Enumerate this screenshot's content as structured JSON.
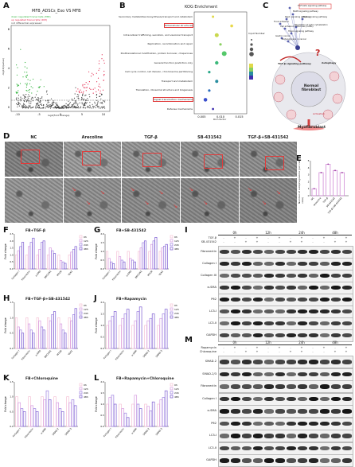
{
  "panel_labels": {
    "A": "A",
    "B": "B",
    "C": "C",
    "D": "D",
    "E": "E",
    "F": "F",
    "G": "G",
    "H": "H",
    "I": "I",
    "J": "J",
    "K": "K",
    "L": "L",
    "M": "M"
  },
  "panelA": {
    "title": "MFB_ADSCs_Exo VS MFB",
    "legend": [
      "down regulated transcripts (358)",
      "up regulated transcripts (263)",
      "not differential expressed"
    ],
    "xlabel": "log2(Fold Change)",
    "ylabel": "-log10(qvalue)",
    "xticks": [
      "-10",
      "-5",
      "0",
      "5",
      "10"
    ],
    "yticks": [
      "0",
      "2",
      "4",
      "6",
      "8"
    ],
    "colors": {
      "down": "#2fb23a",
      "up": "#e2244a",
      "ns": "#444444"
    }
  },
  "panelB": {
    "title": "KOG Enrichment",
    "xlabel": "Rich factor",
    "xticks": [
      "0.005",
      "0.010",
      "0.015"
    ],
    "legend_title": "Input Number",
    "categories": [
      "Secondary metabolites biosynthesis,transport and catabolism",
      "Extracellular structures",
      "Intracellular trafficking, secretion, and vesicular transport",
      "Replication, recombination and repair",
      "Posttranslational modification, protein turnover, chaperones",
      "General function prediction only",
      "Cell cycle control, cell division, chromosome partitioning",
      "Transport and metabolism",
      "Translation, ribosomal structure and biogenesis",
      "Signal transduction mechanisms",
      "Defense mechanisms"
    ],
    "highlighted": [
      "Extracellular structures",
      "Signal transduction mechanisms"
    ]
  },
  "panelC": {
    "top_nodes": [
      "TGF-beta signaling pathway",
      "MAPK signaling pathway",
      "Rap1 signaling pathway",
      "Focal adhesion",
      "Cell adhesion molecules (CAMs)",
      "Hippo signaling pathway",
      "Gastric cancer",
      "Proteoglycans in cancer",
      "Regulation of actin cytoskeleton",
      "Rap1 signaling pathway"
    ],
    "hub_label": "TGF-β signaling pathway",
    "autophagy": "Autophagy",
    "center": "Normal fibroblast",
    "activation": "Activation",
    "myofibroblast": "Myofibroblast",
    "autophagosome": "Autophagosome",
    "lysosome": "Lysosome",
    "autolysosome": "Autolysosome",
    "phagophore": "Phagophore"
  },
  "panelD": {
    "columns": [
      "NC",
      "Arecoline",
      "TGF-β",
      "SB-431542",
      "TGF-β+SB-431542"
    ]
  },
  "panelE": {
    "chart_data": {
      "type": "bar",
      "ylabel": "Number of autophagosome (per cell view)",
      "categories": [
        "NC",
        "Arecoline",
        "TGF-β",
        "SB-431542",
        "TGF-β+SB-431542"
      ],
      "values": [
        1.0,
        3.3,
        4.5,
        3.6,
        3.3
      ],
      "ylim": [
        0,
        5
      ],
      "yticks": [
        "0",
        "1",
        "2",
        "3",
        "4",
        "5"
      ],
      "colors": [
        "#d18bd6",
        "#d18bd6",
        "#d18bd6",
        "#d18bd6",
        "#d18bd6"
      ]
    }
  },
  "fold_charts": {
    "legend": [
      "0h",
      "12h",
      "24h",
      "48h"
    ],
    "colors": [
      "#f5c2d6",
      "#d69ae0",
      "#9b7fe0",
      "#7a5ad1"
    ],
    "F": {
      "title": "FB+TGF-β",
      "ylabel": "Fold change",
      "ylim": [
        0,
        2.5
      ],
      "yticks": [
        "0.0",
        "0.5",
        "1.0",
        "1.5",
        "2.0",
        "2.5"
      ],
      "categories": [
        "Collagen I",
        "Fibronectin",
        "α-SMA",
        "BECLIN1",
        "MTOR",
        "ULK1"
      ],
      "series": [
        [
          1,
          1,
          1,
          1,
          1,
          1
        ],
        [
          1.3,
          1.6,
          1.4,
          1.5,
          0.6,
          1.2
        ],
        [
          1.6,
          1.9,
          1.9,
          1.3,
          0.5,
          1.4
        ],
        [
          1.9,
          2.2,
          2.0,
          1.1,
          0.4,
          1.6
        ]
      ]
    },
    "G": {
      "title": "FB+SB-431542",
      "ylabel": "Fold change",
      "ylim": [
        0,
        2.0
      ],
      "yticks": [
        "0.0",
        "0.5",
        "1.0",
        "1.5",
        "2.0"
      ],
      "categories": [
        "Collagen I",
        "Fibronectin",
        "α-SMA",
        "BECLIN1",
        "MTOR",
        "ULK1"
      ],
      "series": [
        [
          1,
          1,
          1,
          1,
          1,
          1
        ],
        [
          0.6,
          0.7,
          0.6,
          1.2,
          1.4,
          1.2
        ],
        [
          0.4,
          0.5,
          0.5,
          1.5,
          1.6,
          1.3
        ],
        [
          0.3,
          0.4,
          0.4,
          1.6,
          1.8,
          1.4
        ]
      ]
    },
    "H": {
      "title": "FB+TGF-β+SB-431542",
      "ylabel": "Fold change",
      "ylim": [
        0,
        1.5
      ],
      "yticks": [
        "0.0",
        "0.5",
        "1.0",
        "1.5"
      ],
      "categories": [
        "Collagen I",
        "Fibronectin",
        "α-SMA",
        "BECLIN1",
        "MTOR",
        "ULK1"
      ],
      "series": [
        [
          1,
          1,
          1,
          1,
          1,
          1
        ],
        [
          0.7,
          0.8,
          0.9,
          0.9,
          0.8,
          0.9
        ],
        [
          0.6,
          0.6,
          0.7,
          1.1,
          0.6,
          1.1
        ],
        [
          0.5,
          0.5,
          0.6,
          1.2,
          0.5,
          1.3
        ]
      ]
    },
    "J": {
      "title": "FB+Rapamycin",
      "ylabel": "Fold change",
      "ylim": [
        0,
        2.0
      ],
      "yticks": [
        "0.0",
        "0.5",
        "1.0",
        "1.5",
        "2.0"
      ],
      "categories": [
        "Collagen I",
        "Fibronectin",
        "α-SMA",
        "SMAD-2",
        "SMAD-3"
      ],
      "series": [
        [
          1,
          1,
          1,
          1,
          1
        ],
        [
          1.2,
          1.3,
          1.2,
          1.2,
          1.3
        ],
        [
          1.4,
          1.5,
          1.6,
          1.3,
          1.5
        ],
        [
          1.6,
          1.7,
          1.8,
          1.5,
          1.7
        ]
      ]
    },
    "K": {
      "title": "FB+Chloroquine",
      "ylabel": "Fold change",
      "ylim": [
        0,
        1.5
      ],
      "yticks": [
        "0.0",
        "0.5",
        "1.0",
        "1.5"
      ],
      "categories": [
        "Collagen I",
        "Fibronectin",
        "α-SMA",
        "SMAD-2",
        "SMAD-3"
      ],
      "series": [
        [
          1,
          1,
          1,
          1,
          1
        ],
        [
          0.8,
          0.7,
          0.9,
          0.8,
          0.8
        ],
        [
          0.6,
          0.6,
          1.2,
          0.6,
          0.9
        ],
        [
          0.5,
          0.5,
          0.9,
          0.5,
          0.7
        ]
      ]
    },
    "L": {
      "title": "FB+Rapamycin+Chloroquine",
      "ylabel": "Fold change",
      "ylim": [
        0,
        2.0
      ],
      "yticks": [
        "0.0",
        "0.5",
        "1.0",
        "1.5",
        "2.0"
      ],
      "categories": [
        "Collagen I",
        "Fibronectin",
        "α-SMA",
        "SMAD-2",
        "SMAD-3"
      ],
      "series": [
        [
          1,
          1,
          1,
          1,
          1
        ],
        [
          1.3,
          0.8,
          1.4,
          0.9,
          1.2
        ],
        [
          1.4,
          0.6,
          1.0,
          0.7,
          1.3
        ],
        [
          1.0,
          0.4,
          0.8,
          1.1,
          1.6
        ]
      ]
    }
  },
  "panelI": {
    "treat_rows": [
      "TGF-β",
      "SB-431542"
    ],
    "times": [
      "0h",
      "12h",
      "24h",
      "48h"
    ],
    "signs": [
      [
        "-",
        "+",
        "-",
        "+",
        "-",
        "+",
        "-",
        "+",
        "-",
        "+",
        "-",
        "+"
      ],
      [
        "-",
        "-",
        "+",
        "+",
        "-",
        "-",
        "+",
        "+",
        "-",
        "-",
        "+",
        "+"
      ]
    ],
    "proteins": [
      "Fibronectin",
      "Collagen I",
      "Collagen III",
      "α-SMA",
      "P62",
      "LC3-I",
      "LC3-II",
      "GAPDH"
    ]
  },
  "panelM": {
    "treat_rows": [
      "Rapamycin",
      "Chloroquine"
    ],
    "times": [
      "0h",
      "12h",
      "24h",
      "48h"
    ],
    "signs": [
      [
        "-",
        "+",
        "-",
        "+",
        "-",
        "+",
        "-",
        "+",
        "-",
        "+",
        "-",
        "+"
      ],
      [
        "-",
        "-",
        "+",
        "+",
        "-",
        "-",
        "+",
        "+",
        "-",
        "-",
        "+",
        "+"
      ]
    ],
    "proteins": [
      "SMAD-2",
      "SMAD-2/3",
      "Fibronectin",
      "Collagen I",
      "α-SMA",
      "P62",
      "LC3-I",
      "LC3-II",
      "GAPDH"
    ]
  }
}
